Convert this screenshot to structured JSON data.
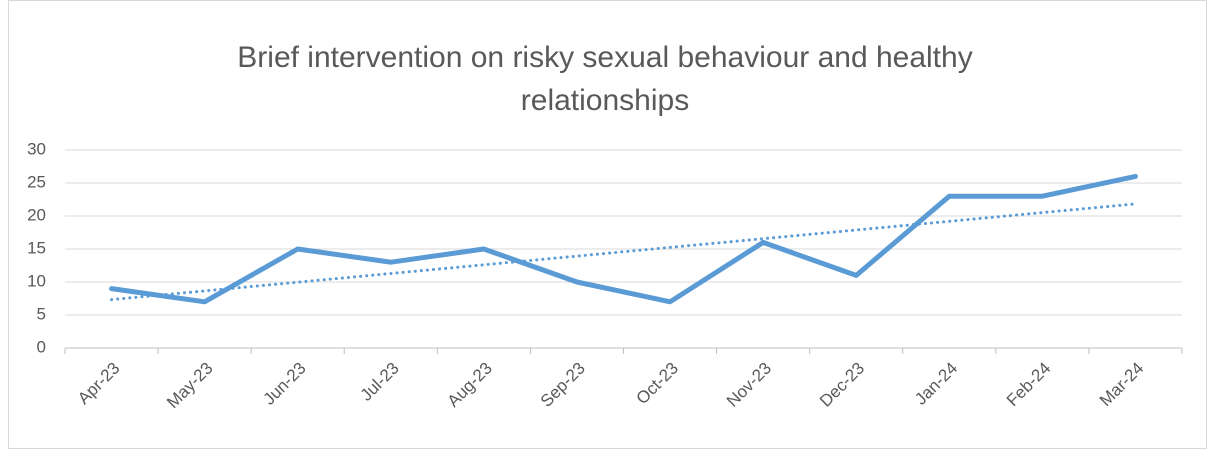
{
  "chart_data": {
    "type": "line",
    "title": "Brief intervention on risky sexual behaviour and healthy relationships",
    "categories": [
      "Apr-23",
      "May-23",
      "Jun-23",
      "Jul-23",
      "Aug-23",
      "Sep-23",
      "Oct-23",
      "Nov-23",
      "Dec-23",
      "Jan-24",
      "Feb-24",
      "Mar-24"
    ],
    "series": [
      {
        "color": "#5b9bd5",
        "values": [
          9,
          7,
          15,
          13,
          15,
          10,
          7,
          16,
          11,
          23,
          23,
          26
        ]
      }
    ],
    "trendline": "linear",
    "ylim": [
      0,
      30
    ],
    "yticks": [
      0,
      5,
      10,
      15,
      20,
      25,
      30
    ],
    "grid": true
  }
}
